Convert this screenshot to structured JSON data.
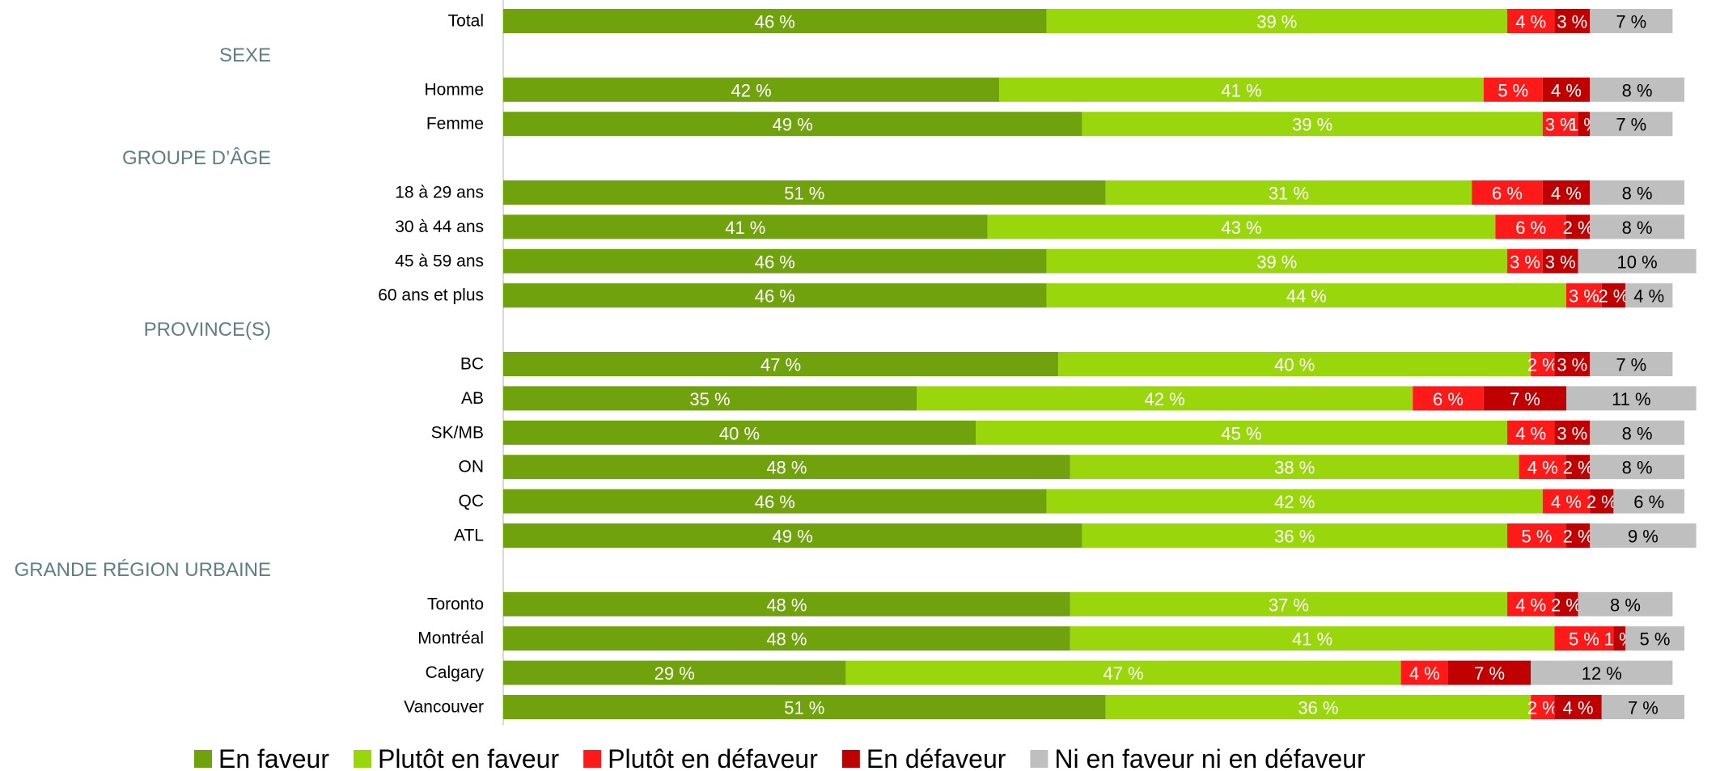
{
  "chart_data": {
    "type": "stacked-bar-horizontal",
    "categories": [
      "Total",
      "SEXE",
      "Homme",
      "Femme",
      "GROUPE D’ÂGE",
      "18 à 29 ans",
      "30 à 44 ans",
      "45 à 59 ans",
      "60 ans et plus",
      "PROVINCE(S)",
      "BC",
      "AB",
      "SK/MB",
      "ON",
      "QC",
      "ATL",
      "GRANDE RÉGION URBAINE",
      "Toronto",
      "Montréal",
      "Calgary",
      "Vancouver"
    ],
    "series": [
      {
        "name": "En faveur",
        "color": "#70a20e",
        "values": [
          46,
          null,
          42,
          49,
          null,
          51,
          41,
          46,
          46,
          null,
          47,
          35,
          40,
          48,
          46,
          49,
          null,
          48,
          48,
          29,
          51
        ],
        "value_labels": [
          "46 %",
          null,
          "42 %",
          "49 %",
          null,
          "51 %",
          "41 %",
          "46 %",
          "46 %",
          null,
          "47 %",
          "35 %",
          "40 %",
          "48 %",
          "46 %",
          "49 %",
          null,
          "48 %",
          "48 %",
          "29 %",
          "51 %"
        ]
      },
      {
        "name": "Plutôt en faveur",
        "color": "#99d60b",
        "values": [
          39,
          null,
          41,
          39,
          null,
          31,
          43,
          39,
          44,
          null,
          40,
          42,
          45,
          38,
          42,
          36,
          null,
          37,
          41,
          47,
          36
        ],
        "value_labels": [
          "39 %",
          null,
          "41 %",
          "39 %",
          null,
          "31 %",
          "43 %",
          "39 %",
          "44 %",
          null,
          "40 %",
          "42 %",
          "45 %",
          "38 %",
          "42 %",
          "36 %",
          null,
          "37 %",
          "41 %",
          "47 %",
          "36 %"
        ]
      },
      {
        "name": "Plutôt en défaveur",
        "color": "#ff1a1a",
        "values": [
          4,
          null,
          5,
          3,
          null,
          6,
          6,
          3,
          3,
          null,
          2,
          6,
          4,
          4,
          4,
          5,
          null,
          4,
          5,
          4,
          2
        ],
        "value_labels": [
          "4 %",
          null,
          "5 %",
          "3 %",
          null,
          "6 %",
          "6 %",
          "3 %",
          "3 %",
          null,
          "2 %",
          "6 %",
          "4 %",
          "4 %",
          "4 %",
          "5 %",
          null,
          "4 %",
          "5 %",
          "4 %",
          "2 %"
        ]
      },
      {
        "name": "En défaveur",
        "color": "#c00000",
        "values": [
          3,
          null,
          4,
          1,
          null,
          4,
          2,
          3,
          2,
          null,
          3,
          7,
          3,
          2,
          2,
          2,
          null,
          2,
          1,
          7,
          4
        ],
        "value_labels": [
          "3 %",
          null,
          "4 %",
          "1 %",
          null,
          "4 %",
          "2 %",
          "3 %",
          "2 %",
          null,
          "3 %",
          "7 %",
          "3 %",
          "2 %",
          "2 %",
          "2 %",
          null,
          "2 %",
          "1 %",
          "7 %",
          "4 %"
        ]
      },
      {
        "name": "Ni en faveur ni en défaveur",
        "color": "#bfbfbf",
        "values": [
          7,
          null,
          8,
          7,
          null,
          8,
          8,
          10,
          4,
          null,
          7,
          11,
          8,
          8,
          6,
          9,
          null,
          8,
          5,
          12,
          7
        ],
        "value_labels": [
          "7 %",
          null,
          "8 %",
          "7 %",
          null,
          "8 %",
          "8 %",
          "10 %",
          "4 %",
          null,
          "7 %",
          "11 %",
          "8 %",
          "8 %",
          "6 %",
          "9 %",
          null,
          "8 %",
          "5 %",
          "12 %",
          "7 %"
        ]
      }
    ],
    "legend": "bottom"
  }
}
